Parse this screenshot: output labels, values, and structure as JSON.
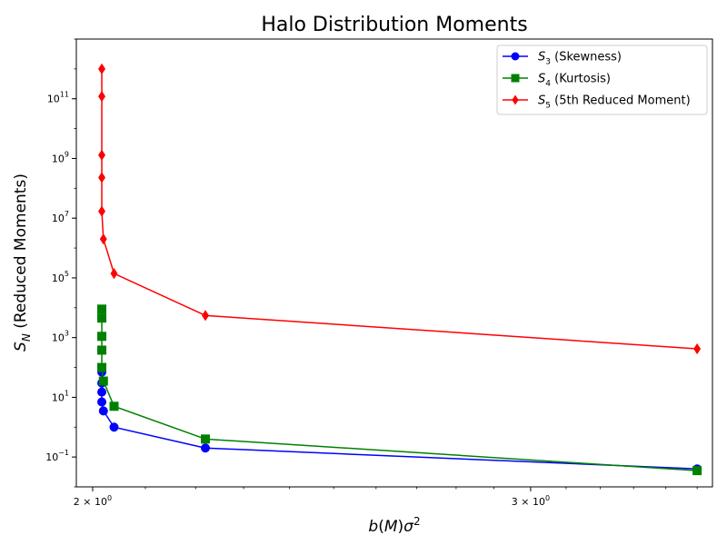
{
  "chart_data": {
    "type": "line",
    "title": "Halo Distribution Moments",
    "xlabel": "b(M)σ²",
    "ylabel": "S_N (Reduced Moments)",
    "xscale": "log",
    "yscale": "log",
    "xlim": [
      1.97,
      3.55
    ],
    "ylim": [
      0.01,
      10000000000000.0
    ],
    "x_ticks": [
      {
        "value": 2,
        "base": "2 × 10",
        "exp": "0"
      },
      {
        "value": 3,
        "base": "3 × 10",
        "exp": "0"
      }
    ],
    "y_ticks": [
      {
        "value": 0.1,
        "base": "10",
        "exp": "−1"
      },
      {
        "value": 10,
        "base": "10",
        "exp": "1"
      },
      {
        "value": 1000,
        "base": "10",
        "exp": "3"
      },
      {
        "value": 100000,
        "base": "10",
        "exp": "5"
      },
      {
        "value": 10000000,
        "base": "10",
        "exp": "7"
      },
      {
        "value": 1000000000,
        "base": "10",
        "exp": "9"
      },
      {
        "value": 100000000000,
        "base": "10",
        "exp": "11"
      }
    ],
    "legend_position": "top-right",
    "grid": false,
    "series": [
      {
        "name": "S_3 (Skewness)",
        "legend_sub": "3",
        "legend_rest": "(Skewness)",
        "color": "#0000ff",
        "marker": "circle",
        "points": [
          {
            "x": 2.017,
            "y": 70
          },
          {
            "x": 2.017,
            "y": 30
          },
          {
            "x": 2.017,
            "y": 15
          },
          {
            "x": 2.017,
            "y": 7
          },
          {
            "x": 2.02,
            "y": 3.5
          },
          {
            "x": 2.04,
            "y": 1
          },
          {
            "x": 2.22,
            "y": 0.2
          },
          {
            "x": 3.5,
            "y": 0.04
          }
        ]
      },
      {
        "name": "S_4 (Kurtosis)",
        "legend_sub": "4",
        "legend_rest": "(Kurtosis)",
        "color": "#008000",
        "marker": "square",
        "points": [
          {
            "x": 2.017,
            "y": 9000
          },
          {
            "x": 2.017,
            "y": 4500
          },
          {
            "x": 2.017,
            "y": 1100
          },
          {
            "x": 2.017,
            "y": 380
          },
          {
            "x": 2.017,
            "y": 100
          },
          {
            "x": 2.02,
            "y": 35
          },
          {
            "x": 2.04,
            "y": 5
          },
          {
            "x": 2.22,
            "y": 0.4
          },
          {
            "x": 3.5,
            "y": 0.035
          }
        ]
      },
      {
        "name": "S_5 (5th Reduced Moment)",
        "legend_sub": "5",
        "legend_rest": "(5th Reduced Moment)",
        "color": "#ff0000",
        "marker": "diamond",
        "points": [
          {
            "x": 2.017,
            "y": 1000000000000
          },
          {
            "x": 2.017,
            "y": 120000000000
          },
          {
            "x": 2.017,
            "y": 1300000000
          },
          {
            "x": 2.017,
            "y": 230000000
          },
          {
            "x": 2.017,
            "y": 17000000
          },
          {
            "x": 2.02,
            "y": 2000000
          },
          {
            "x": 2.04,
            "y": 140000
          },
          {
            "x": 2.22,
            "y": 5500
          },
          {
            "x": 3.5,
            "y": 420
          }
        ]
      }
    ]
  }
}
